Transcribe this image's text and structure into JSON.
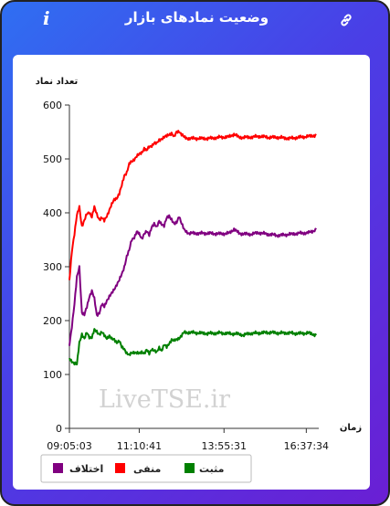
{
  "header": {
    "title": "وضعیت نمادهای بازار",
    "info_icon": "i",
    "link_icon": "link-icon"
  },
  "chart_data": {
    "type": "line",
    "ylabel": "تعداد نماد",
    "xlabel": "زمان",
    "ylim": [
      0,
      600
    ],
    "yticks": [
      "0",
      "100",
      "200",
      "300",
      "400",
      "500",
      "600"
    ],
    "xticks": [
      "09:05:03",
      "11:10:41",
      "13:55:31",
      "16:37:34"
    ],
    "watermark": "LiveTSE.ir",
    "x_index_max": 100,
    "xtick_index": [
      0,
      28,
      62,
      95
    ],
    "grid": false,
    "legend_position": "bottom",
    "series": [
      {
        "name": "منفی",
        "color": "#ff0000",
        "key": "neg",
        "points": [
          [
            0,
            275
          ],
          [
            1,
            330
          ],
          [
            2,
            360
          ],
          [
            3,
            395
          ],
          [
            4,
            412
          ],
          [
            5,
            375
          ],
          [
            6,
            385
          ],
          [
            7,
            398
          ],
          [
            8,
            402
          ],
          [
            9,
            392
          ],
          [
            10,
            410
          ],
          [
            11,
            398
          ],
          [
            12,
            388
          ],
          [
            13,
            390
          ],
          [
            14,
            385
          ],
          [
            15,
            395
          ],
          [
            16,
            405
          ],
          [
            17,
            415
          ],
          [
            18,
            425
          ],
          [
            19,
            428
          ],
          [
            20,
            435
          ],
          [
            21,
            450
          ],
          [
            22,
            470
          ],
          [
            23,
            475
          ],
          [
            24,
            490
          ],
          [
            25,
            495
          ],
          [
            26,
            500
          ],
          [
            27,
            505
          ],
          [
            28,
            508
          ],
          [
            29,
            512
          ],
          [
            30,
            520
          ],
          [
            31,
            515
          ],
          [
            32,
            522
          ],
          [
            33,
            525
          ],
          [
            34,
            530
          ],
          [
            35,
            528
          ],
          [
            36,
            535
          ],
          [
            37,
            538
          ],
          [
            38,
            540
          ],
          [
            39,
            542
          ],
          [
            40,
            546
          ],
          [
            41,
            548
          ],
          [
            42,
            540
          ],
          [
            43,
            550
          ],
          [
            44,
            552
          ],
          [
            45,
            545
          ],
          [
            46,
            540
          ],
          [
            48,
            538
          ],
          [
            52,
            538
          ],
          [
            56,
            538
          ],
          [
            60,
            540
          ],
          [
            64,
            541
          ],
          [
            66,
            546
          ],
          [
            68,
            540
          ],
          [
            72,
            540
          ],
          [
            76,
            542
          ],
          [
            80,
            540
          ],
          [
            84,
            540
          ],
          [
            88,
            538
          ],
          [
            92,
            540
          ],
          [
            96,
            542
          ],
          [
            99,
            544
          ]
        ]
      },
      {
        "name": "مثبت",
        "color": "#008000",
        "key": "pos",
        "points": [
          [
            0,
            130
          ],
          [
            1,
            125
          ],
          [
            2,
            120
          ],
          [
            3,
            118
          ],
          [
            4,
            160
          ],
          [
            5,
            175
          ],
          [
            6,
            165
          ],
          [
            7,
            178
          ],
          [
            8,
            170
          ],
          [
            9,
            168
          ],
          [
            10,
            182
          ],
          [
            11,
            180
          ],
          [
            12,
            175
          ],
          [
            13,
            178
          ],
          [
            14,
            172
          ],
          [
            15,
            168
          ],
          [
            16,
            172
          ],
          [
            17,
            165
          ],
          [
            18,
            165
          ],
          [
            19,
            160
          ],
          [
            20,
            162
          ],
          [
            21,
            150
          ],
          [
            22,
            148
          ],
          [
            23,
            140
          ],
          [
            24,
            135
          ],
          [
            25,
            140
          ],
          [
            26,
            142
          ],
          [
            27,
            140
          ],
          [
            28,
            138
          ],
          [
            29,
            142
          ],
          [
            30,
            140
          ],
          [
            31,
            145
          ],
          [
            32,
            138
          ],
          [
            33,
            148
          ],
          [
            34,
            145
          ],
          [
            35,
            140
          ],
          [
            36,
            150
          ],
          [
            37,
            145
          ],
          [
            38,
            155
          ],
          [
            39,
            150
          ],
          [
            40,
            158
          ],
          [
            41,
            165
          ],
          [
            42,
            162
          ],
          [
            43,
            165
          ],
          [
            44,
            168
          ],
          [
            45,
            172
          ],
          [
            46,
            178
          ],
          [
            48,
            178
          ],
          [
            52,
            177
          ],
          [
            56,
            176
          ],
          [
            60,
            177
          ],
          [
            64,
            176
          ],
          [
            68,
            175
          ],
          [
            70,
            173
          ],
          [
            72,
            176
          ],
          [
            76,
            177
          ],
          [
            80,
            178
          ],
          [
            84,
            177
          ],
          [
            88,
            177
          ],
          [
            92,
            176
          ],
          [
            96,
            177
          ],
          [
            99,
            173
          ]
        ]
      },
      {
        "name": "اختلاف",
        "color": "#800080",
        "key": "diff",
        "points": [
          [
            0,
            155
          ],
          [
            1,
            190
          ],
          [
            2,
            230
          ],
          [
            3,
            280
          ],
          [
            4,
            300
          ],
          [
            5,
            215
          ],
          [
            6,
            210
          ],
          [
            7,
            225
          ],
          [
            8,
            245
          ],
          [
            9,
            255
          ],
          [
            10,
            240
          ],
          [
            11,
            210
          ],
          [
            12,
            215
          ],
          [
            13,
            230
          ],
          [
            14,
            225
          ],
          [
            15,
            238
          ],
          [
            16,
            245
          ],
          [
            17,
            250
          ],
          [
            18,
            258
          ],
          [
            19,
            268
          ],
          [
            20,
            275
          ],
          [
            21,
            285
          ],
          [
            22,
            300
          ],
          [
            23,
            320
          ],
          [
            24,
            330
          ],
          [
            25,
            350
          ],
          [
            26,
            355
          ],
          [
            27,
            365
          ],
          [
            28,
            360
          ],
          [
            29,
            352
          ],
          [
            30,
            362
          ],
          [
            31,
            365
          ],
          [
            32,
            358
          ],
          [
            33,
            375
          ],
          [
            34,
            380
          ],
          [
            35,
            372
          ],
          [
            36,
            385
          ],
          [
            37,
            380
          ],
          [
            38,
            375
          ],
          [
            39,
            390
          ],
          [
            40,
            395
          ],
          [
            41,
            388
          ],
          [
            42,
            378
          ],
          [
            43,
            382
          ],
          [
            44,
            395
          ],
          [
            45,
            380
          ],
          [
            46,
            368
          ],
          [
            48,
            362
          ],
          [
            52,
            362
          ],
          [
            56,
            362
          ],
          [
            60,
            361
          ],
          [
            64,
            362
          ],
          [
            66,
            370
          ],
          [
            68,
            362
          ],
          [
            72,
            360
          ],
          [
            76,
            363
          ],
          [
            80,
            360
          ],
          [
            84,
            358
          ],
          [
            88,
            360
          ],
          [
            92,
            362
          ],
          [
            96,
            363
          ],
          [
            99,
            369
          ]
        ]
      }
    ]
  },
  "legend": [
    {
      "label": "مثبت",
      "color": "#008000"
    },
    {
      "label": "منفی",
      "color": "#ff0000"
    },
    {
      "label": "اختلاف",
      "color": "#800080"
    }
  ]
}
